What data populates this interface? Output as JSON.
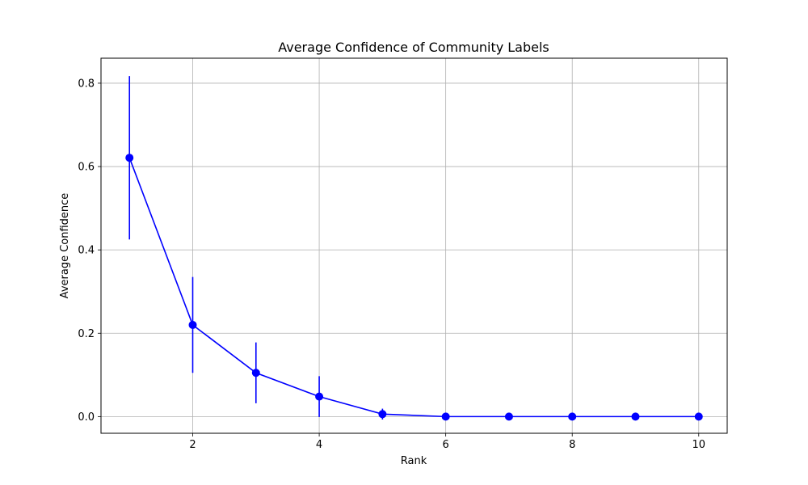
{
  "chart_data": {
    "type": "line",
    "title": "Average Confidence of Community Labels",
    "xlabel": "Rank",
    "ylabel": "Average Confidence",
    "xlim": [
      0.55,
      10.45
    ],
    "ylim": [
      -0.04,
      0.86
    ],
    "x_ticks": [
      2,
      4,
      6,
      8,
      10
    ],
    "y_ticks": [
      0.0,
      0.2,
      0.4,
      0.6,
      0.8
    ],
    "y_tick_labels": [
      "0.0",
      "0.2",
      "0.4",
      "0.6",
      "0.8"
    ],
    "grid": true,
    "series": [
      {
        "x": [
          1,
          2,
          3,
          4,
          5,
          6,
          7,
          8,
          9,
          10
        ],
        "values": [
          0.621,
          0.22,
          0.105,
          0.048,
          0.006,
          0.0,
          0.0,
          0.0,
          0.0,
          0.0
        ],
        "error": [
          0.196,
          0.115,
          0.073,
          0.049,
          0.013,
          0.0,
          0.0,
          0.0,
          0.0,
          0.0
        ],
        "color": "#0000ff",
        "marker": "circle"
      }
    ]
  }
}
